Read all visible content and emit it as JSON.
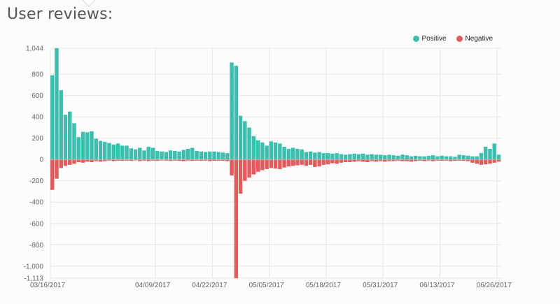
{
  "page": {
    "title": "User reviews:"
  },
  "legend": {
    "positive": "Positive",
    "negative": "Negative"
  },
  "colors": {
    "positive": "#3dbfb0",
    "negative": "#e15d5d",
    "grid": "#e6e6e6"
  },
  "chart_data": {
    "type": "bar",
    "series": [
      {
        "name": "Positive",
        "values": [
          790,
          1044,
          650,
          420,
          450,
          340,
          210,
          260,
          255,
          265,
          195,
          175,
          165,
          155,
          140,
          150,
          130,
          130,
          105,
          95,
          110,
          85,
          120,
          110,
          80,
          75,
          70,
          85,
          80,
          75,
          90,
          100,
          110,
          80,
          75,
          70,
          75,
          75,
          70,
          65,
          60,
          910,
          880,
          410,
          360,
          300,
          220,
          180,
          160,
          130,
          170,
          160,
          150,
          120,
          100,
          110,
          100,
          95,
          70,
          75,
          65,
          70,
          60,
          60,
          55,
          60,
          50,
          45,
          50,
          55,
          50,
          55,
          45,
          50,
          45,
          45,
          40,
          45,
          40,
          35,
          45,
          40,
          30,
          35,
          30,
          30,
          35,
          40,
          30,
          35,
          30,
          30,
          25,
          45,
          40,
          35,
          30,
          30,
          60,
          120,
          100,
          150,
          45
        ]
      },
      {
        "name": "Negative",
        "values": [
          -285,
          -180,
          -80,
          -60,
          -50,
          -40,
          -25,
          -30,
          -20,
          -25,
          -15,
          -20,
          -15,
          -10,
          -15,
          -10,
          -12,
          -10,
          -12,
          -8,
          -15,
          -10,
          -15,
          -10,
          -12,
          -8,
          -10,
          -12,
          -10,
          -12,
          -15,
          -10,
          -12,
          -10,
          -12,
          -10,
          -15,
          -12,
          -10,
          -12,
          -15,
          -150,
          -1113,
          -320,
          -200,
          -170,
          -140,
          -115,
          -100,
          -90,
          -80,
          -85,
          -90,
          -75,
          -65,
          -60,
          -55,
          -50,
          -60,
          -50,
          -70,
          -65,
          -50,
          -45,
          -35,
          -40,
          -30,
          -25,
          -25,
          -20,
          -15,
          -20,
          -25,
          -15,
          -20,
          -15,
          -20,
          -15,
          -15,
          -10,
          -15,
          -15,
          -20,
          -15,
          -10,
          -15,
          -10,
          -15,
          -10,
          -12,
          -10,
          -15,
          -12,
          -10,
          -12,
          -15,
          -30,
          -40,
          -50,
          -45,
          -40,
          -30,
          -20
        ]
      }
    ],
    "ylim": [
      -1113,
      1044
    ],
    "yticks": [
      1044,
      800,
      600,
      400,
      200,
      0,
      -200,
      -400,
      -600,
      -800,
      -1000,
      -1113
    ],
    "ytick_labels": [
      "1,044",
      "800",
      "600",
      "400",
      "200",
      "0",
      "-200",
      "-400",
      "-600",
      "-800",
      "-1,000",
      "-1,113"
    ],
    "xtick_labels": [
      {
        "index": 0,
        "label": "03/16/2017"
      },
      {
        "index": 24,
        "label": "04/09/2017"
      },
      {
        "index": 37,
        "label": "04/22/2017"
      },
      {
        "index": 50,
        "label": "05/05/2017"
      },
      {
        "index": 63,
        "label": "05/18/2017"
      },
      {
        "index": 76,
        "label": "05/31/2017"
      },
      {
        "index": 89,
        "label": "06/13/2017"
      },
      {
        "index": 102,
        "label": "06/26/2017"
      }
    ],
    "grid": true,
    "legend_position": "top-right"
  }
}
